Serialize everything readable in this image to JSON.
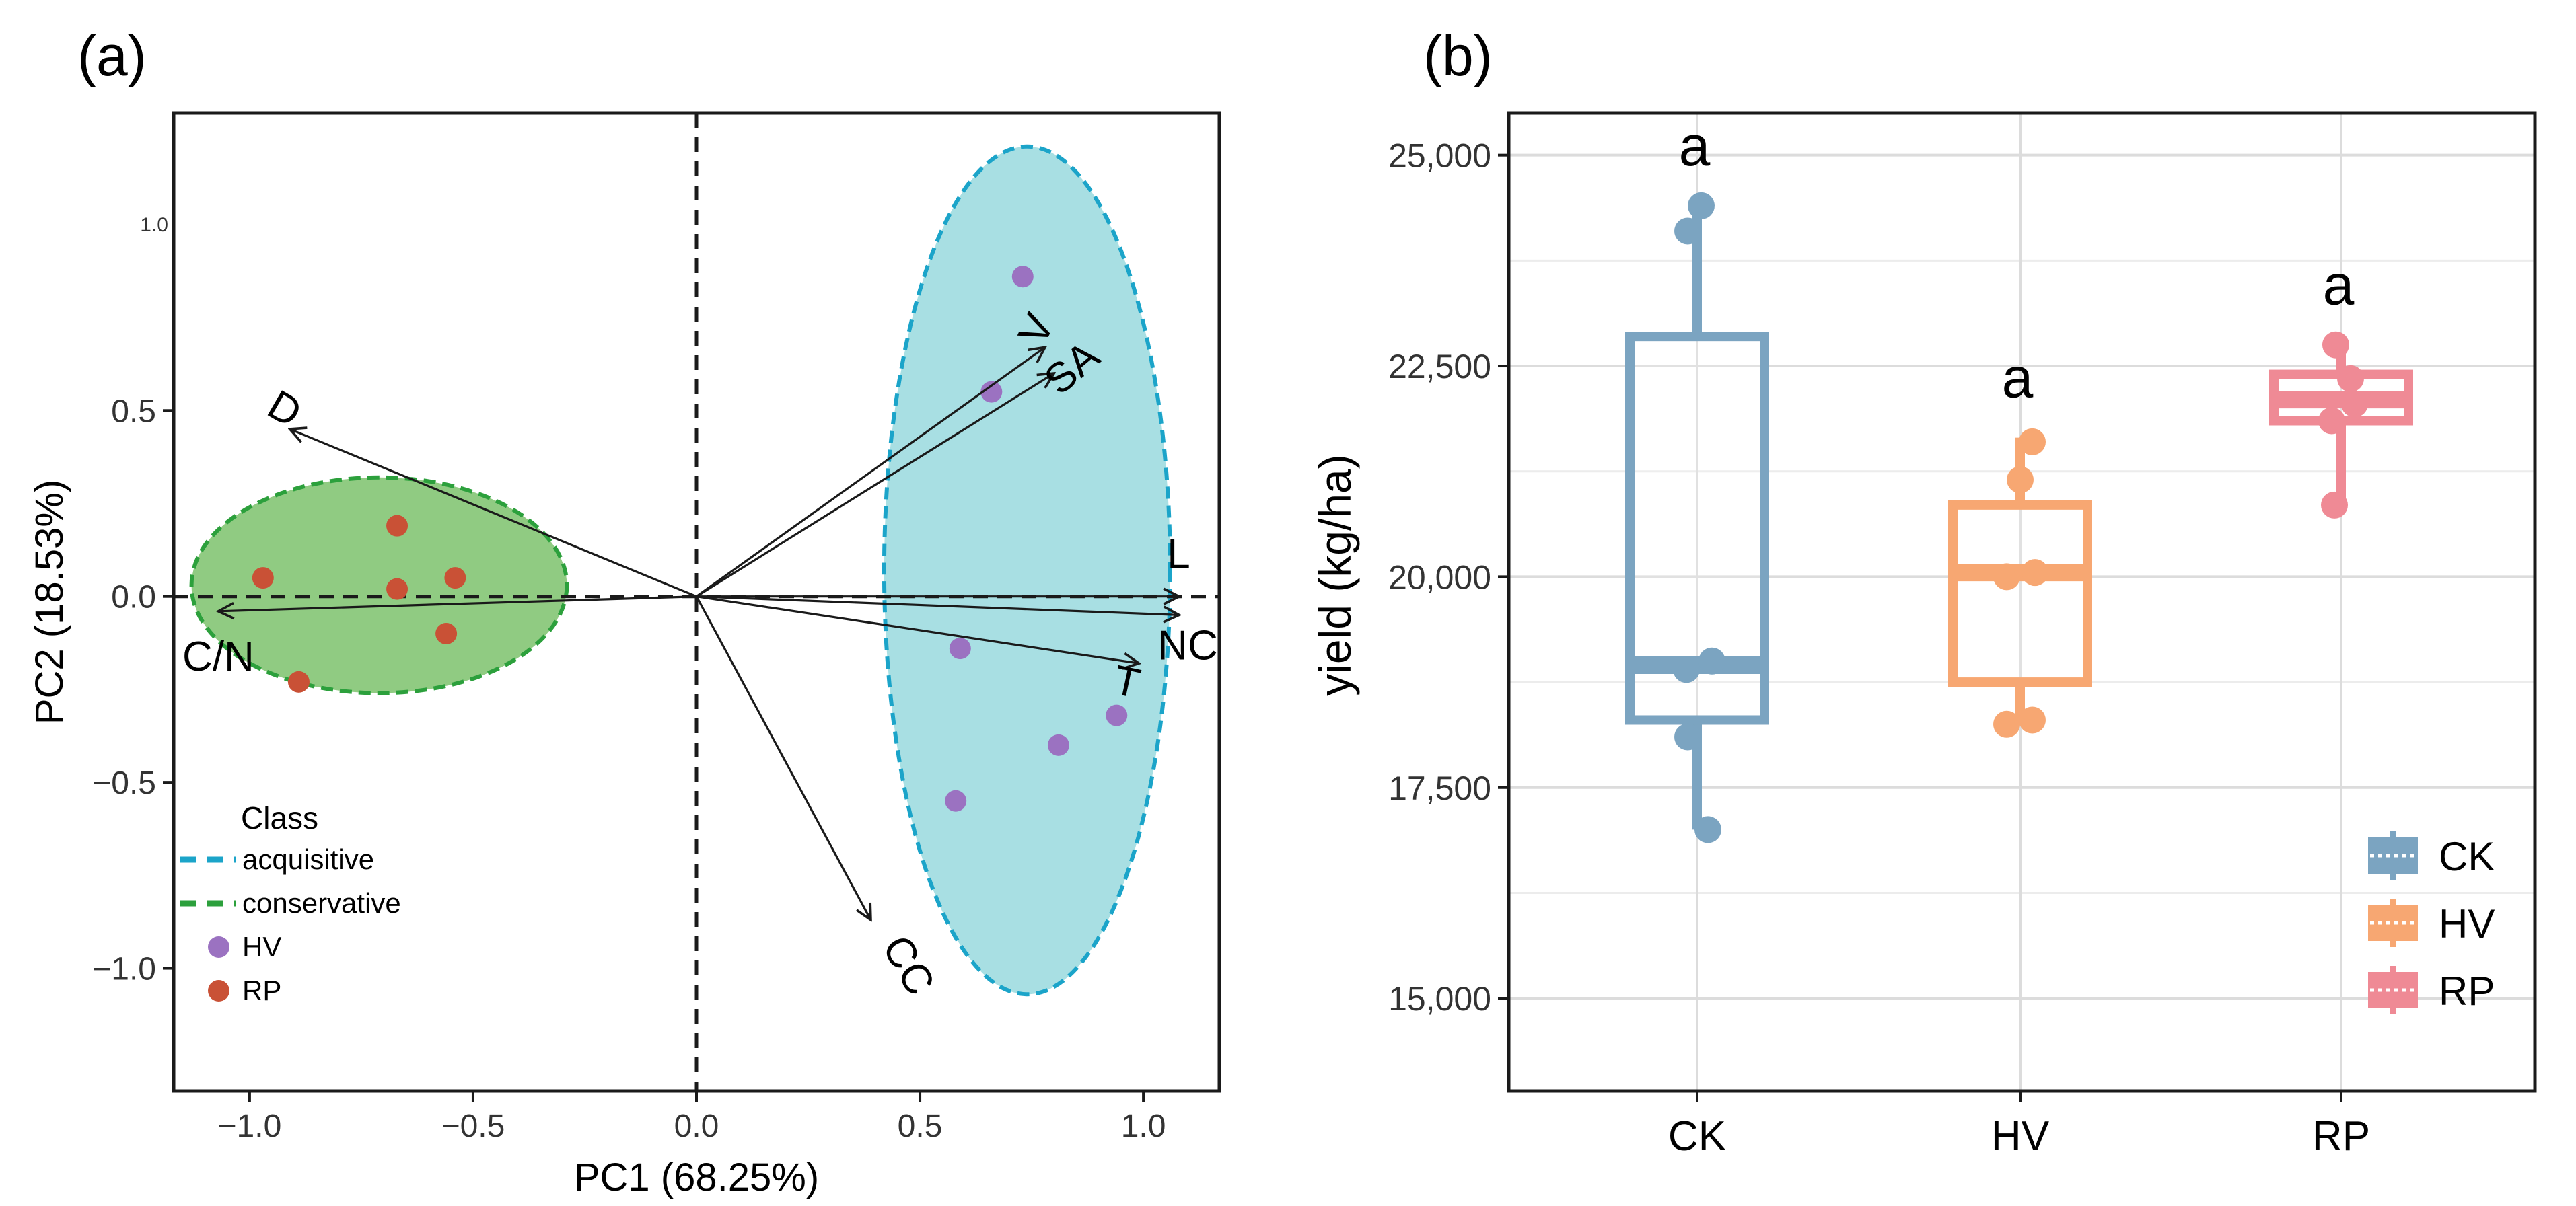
{
  "chart_data": [
    {
      "panel_label": "(a)",
      "type": "scatter",
      "title": "",
      "xlabel": "PC1 (68.25%)",
      "ylabel": "PC2 (18.53%)",
      "xlim": [
        -1.17,
        1.17
      ],
      "ylim": [
        -1.33,
        1.3
      ],
      "x_ticks": [
        -1.0,
        -0.5,
        0.0,
        0.5,
        1.0
      ],
      "x_tick_labels": [
        "−1.0",
        "−0.5",
        "0.0",
        "0.5",
        "1.0"
      ],
      "y_ticks": [
        -1.0,
        -0.5,
        0.0,
        0.5
      ],
      "y_tick_labels": [
        "−1.0",
        "−0.5",
        "0.0",
        "0.5"
      ],
      "stray_tick": {
        "value": 1.0,
        "label": "1.0"
      },
      "series": [
        {
          "name": "HV",
          "color": "#9b72c1",
          "points": [
            {
              "x": 0.73,
              "y": 0.86
            },
            {
              "x": 0.66,
              "y": 0.55
            },
            {
              "x": 0.59,
              "y": -0.14
            },
            {
              "x": 0.94,
              "y": -0.32
            },
            {
              "x": 0.81,
              "y": -0.4
            },
            {
              "x": 0.58,
              "y": -0.55
            }
          ]
        },
        {
          "name": "RP",
          "color": "#c95136",
          "points": [
            {
              "x": -0.67,
              "y": 0.19
            },
            {
              "x": -0.97,
              "y": 0.05
            },
            {
              "x": -0.67,
              "y": 0.02
            },
            {
              "x": -0.54,
              "y": 0.05
            },
            {
              "x": -0.56,
              "y": -0.1
            },
            {
              "x": -0.89,
              "y": -0.23
            }
          ]
        }
      ],
      "ellipses": [
        {
          "class": "acquisitive",
          "cx": 0.74,
          "cy": 0.07,
          "rx": 0.32,
          "ry": 1.14,
          "fill": "#a8dfe3",
          "stroke": "#1ba4c9"
        },
        {
          "class": "conservative",
          "cx": -0.71,
          "cy": 0.03,
          "rx": 0.42,
          "ry": 0.29,
          "fill": "#90cb82",
          "stroke": "#2ca03c"
        }
      ],
      "loadings": [
        {
          "name": "V",
          "x": 0.78,
          "y": 0.67
        },
        {
          "name": "SA",
          "x": 0.8,
          "y": 0.6
        },
        {
          "name": "D",
          "x": -0.91,
          "y": 0.45
        },
        {
          "name": "L",
          "x": 1.08,
          "y": 0.0
        },
        {
          "name": "NC",
          "x": 1.08,
          "y": -0.05
        },
        {
          "name": "T",
          "x": 0.99,
          "y": -0.18
        },
        {
          "name": "C/N",
          "x": -1.07,
          "y": -0.04
        },
        {
          "name": "CC",
          "x": 0.39,
          "y": -0.87
        }
      ],
      "legend": {
        "title": "Class",
        "position": "bottom-left",
        "entries": [
          {
            "label": "acquisitive",
            "kind": "dashed-line",
            "color": "#1ba4c9"
          },
          {
            "label": "conservative",
            "kind": "dashed-line",
            "color": "#2ca03c"
          },
          {
            "label": "HV",
            "kind": "point",
            "color": "#9b72c1"
          },
          {
            "label": "RP",
            "kind": "point",
            "color": "#c95136"
          }
        ]
      }
    },
    {
      "panel_label": "(b)",
      "type": "box",
      "title": "",
      "xlabel": "",
      "ylabel": "yield (kg/ha)",
      "ylim": [
        13900,
        25500
      ],
      "y_ticks": [
        15000,
        17500,
        20000,
        22500,
        25000
      ],
      "y_tick_labels": [
        "15,000",
        "17,500",
        "20,000",
        "22,500",
        "25,000"
      ],
      "categories": [
        "CK",
        "HV",
        "RP"
      ],
      "grid": true,
      "boxes": [
        {
          "name": "CK",
          "color": "#7ba4c1",
          "q1": 18300,
          "median": 18950,
          "q3": 22850,
          "whisker_low": 17000,
          "whisker_high": 24400,
          "letter": "a",
          "points": [
            24400,
            24100,
            19000,
            18900,
            18100,
            17000
          ]
        },
        {
          "name": "HV",
          "color": "#f7a772",
          "q1": 18750,
          "median": 20050,
          "q3": 20850,
          "whisker_low": 18250,
          "whisker_high": 21650,
          "letter": "a",
          "points": [
            21600,
            21150,
            20050,
            20000,
            18300,
            18250
          ]
        },
        {
          "name": "RP",
          "color": "#ef8a95",
          "q1": 21850,
          "median": 22100,
          "q3": 22400,
          "whisker_low": 20900,
          "whisker_high": 22750,
          "letter": "a",
          "points": [
            22750,
            22350,
            22050,
            21850,
            20850
          ]
        }
      ],
      "legend": {
        "position": "bottom-right",
        "entries": [
          {
            "label": "CK",
            "color": "#7ba4c1"
          },
          {
            "label": "HV",
            "color": "#f7a772"
          },
          {
            "label": "RP",
            "color": "#ef8a95"
          }
        ]
      }
    }
  ]
}
